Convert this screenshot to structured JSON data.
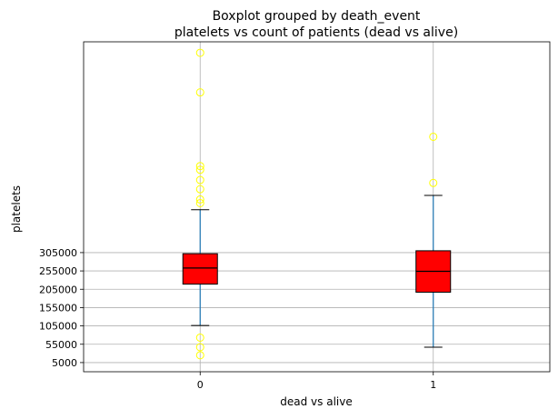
{
  "chart_data": {
    "type": "boxplot",
    "title_line1": "Boxplot grouped by death_event",
    "title_line2": "platelets vs count of patients (dead vs alive)",
    "xlabel": "dead vs alive",
    "ylabel": "platelets",
    "categories": [
      "0",
      "1"
    ],
    "yticks": [
      5000,
      55000,
      105000,
      155000,
      205000,
      255000,
      305000
    ],
    "ytick_labels": [
      "5000",
      "55000",
      "105000",
      "155000",
      "205000",
      "255000",
      "305000"
    ],
    "ylim": [
      -20000,
      880000
    ],
    "grid": true,
    "box_color": "#ff0000",
    "whisker_color": "#1f77b4",
    "flier_color": "#ffff00",
    "boxes": [
      {
        "category": "0",
        "whisker_low": 106000,
        "q1": 219000,
        "median": 263000,
        "q3": 302000,
        "whisker_high": 422000,
        "fliers": [
          25000,
          47000,
          73000,
          440000,
          450000,
          478000,
          503000,
          531000,
          541000,
          742000,
          850000
        ]
      },
      {
        "category": "1",
        "whisker_low": 47000,
        "q1": 197000,
        "median": 254000,
        "q3": 310000,
        "whisker_high": 461000,
        "fliers": [
          495000,
          621000
        ]
      }
    ]
  }
}
